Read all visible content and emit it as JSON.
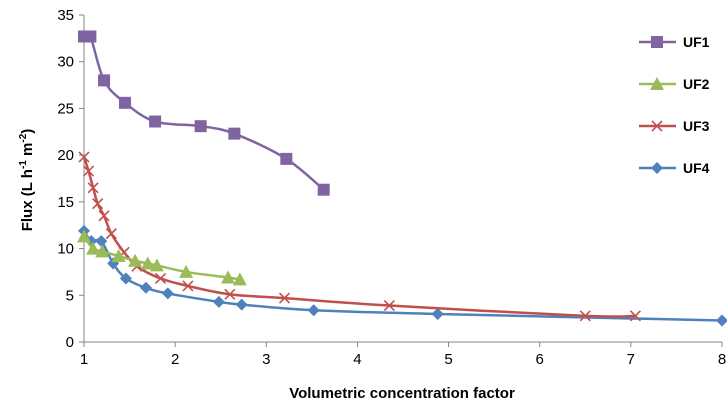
{
  "chart_data": {
    "type": "line",
    "xlabel": "Volumetric concentration factor",
    "ylabel_parts": [
      "Flux (L h",
      "-1",
      " m",
      "-2",
      ")"
    ],
    "xlim": [
      1,
      8
    ],
    "ylim": [
      0,
      35
    ],
    "xticks": [
      1,
      2,
      3,
      4,
      5,
      6,
      7,
      8
    ],
    "yticks": [
      0,
      5,
      10,
      15,
      20,
      25,
      30,
      35
    ],
    "grid": false,
    "legend_position": "right",
    "series": [
      {
        "name": "UF1",
        "color": "#8064A2",
        "marker": "square",
        "x": [
          1.0,
          1.07,
          1.22,
          1.45,
          1.78,
          2.28,
          2.65,
          3.22,
          3.63
        ],
        "y": [
          32.7,
          32.7,
          28.0,
          25.6,
          23.6,
          23.1,
          22.3,
          19.6,
          16.3
        ]
      },
      {
        "name": "UF2",
        "color": "#9BBB59",
        "marker": "triangle",
        "x": [
          1.0,
          1.1,
          1.2,
          1.38,
          1.56,
          1.7,
          1.8,
          2.12,
          2.58,
          2.71
        ],
        "y": [
          11.3,
          10.0,
          9.7,
          9.2,
          8.7,
          8.4,
          8.2,
          7.5,
          6.9,
          6.7
        ]
      },
      {
        "name": "UF3",
        "color": "#C0504D",
        "marker": "x",
        "x": [
          1.0,
          1.05,
          1.1,
          1.15,
          1.22,
          1.3,
          1.44,
          1.58,
          1.84,
          2.14,
          2.6,
          3.2,
          4.35,
          6.5,
          7.05
        ],
        "y": [
          19.8,
          18.3,
          16.5,
          14.8,
          13.5,
          11.6,
          9.6,
          8.1,
          6.8,
          6.0,
          5.1,
          4.7,
          3.9,
          2.8,
          2.8
        ]
      },
      {
        "name": "UF4",
        "color": "#4F81BD",
        "marker": "diamond",
        "x": [
          1.0,
          1.08,
          1.19,
          1.32,
          1.46,
          1.68,
          1.92,
          2.48,
          2.73,
          3.52,
          4.88,
          8.0
        ],
        "y": [
          11.9,
          10.8,
          10.8,
          8.4,
          6.8,
          5.8,
          5.2,
          4.3,
          4.0,
          3.4,
          3.0,
          2.3
        ]
      }
    ]
  }
}
